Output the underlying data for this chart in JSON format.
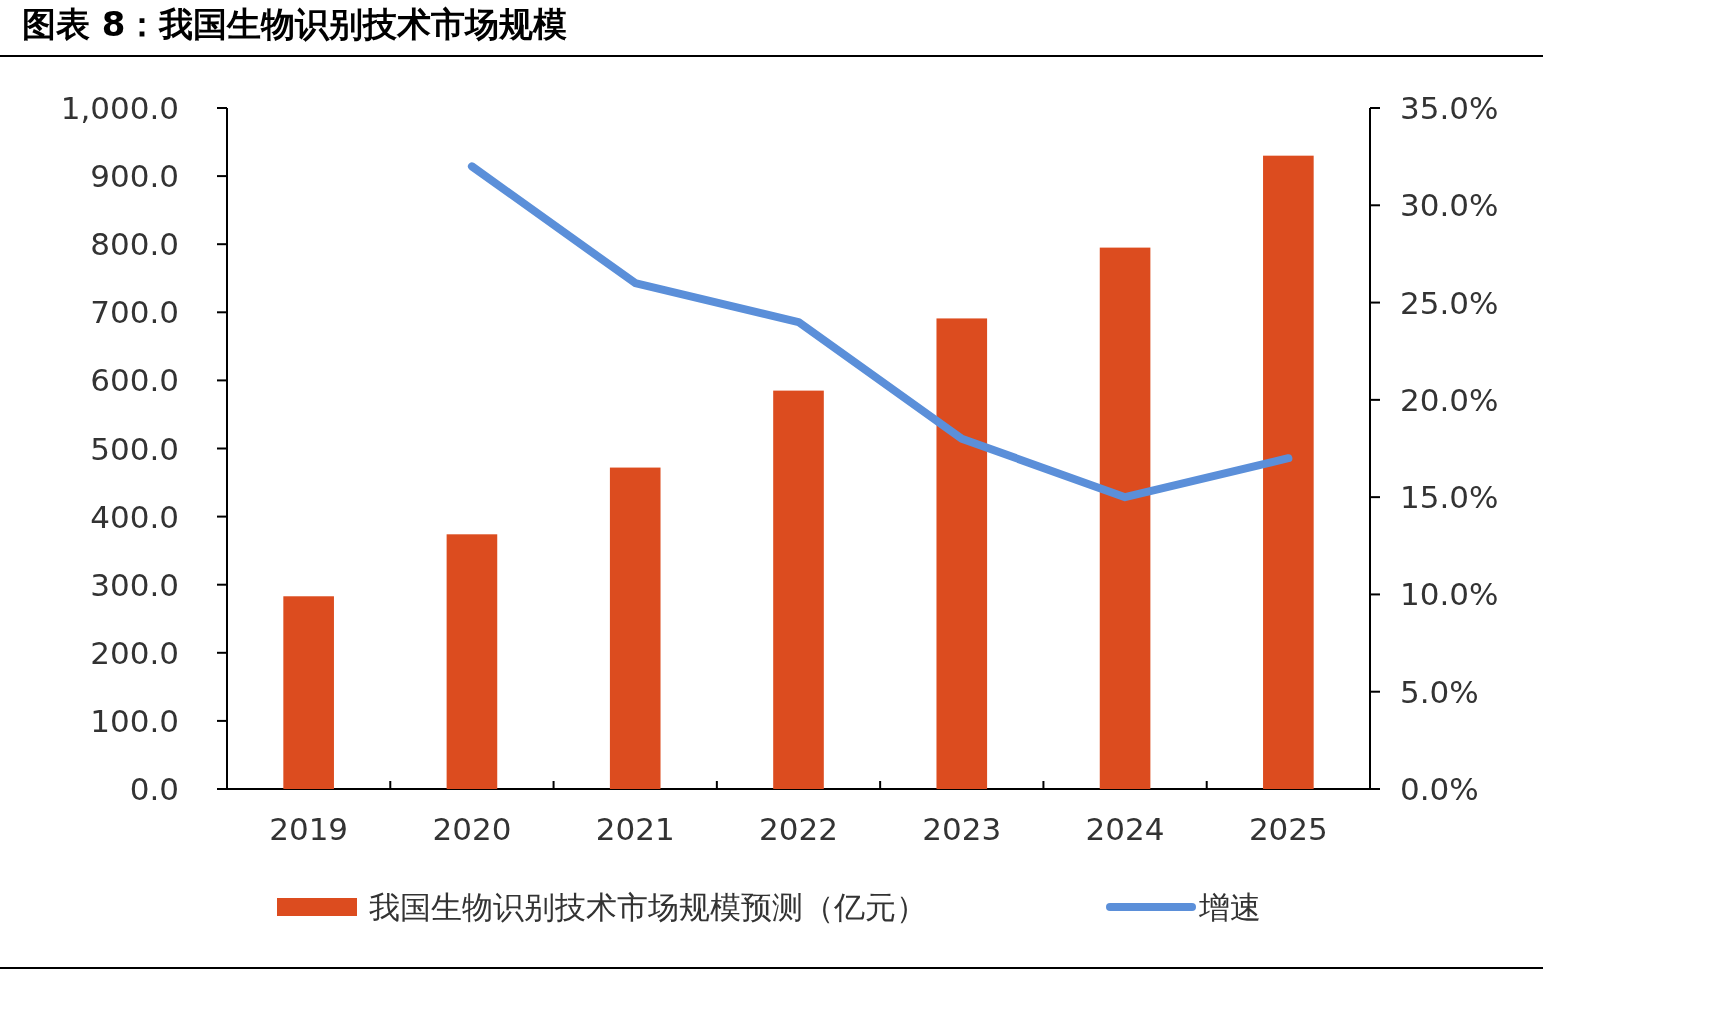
{
  "chart_data": {
    "type": "bar",
    "title": "图表 8：我国生物识别技术市场规模",
    "categories": [
      "2019",
      "2020",
      "2021",
      "2022",
      "2023",
      "2024",
      "2025"
    ],
    "series": [
      {
        "name": "我国生物识别技术市场规模预测（亿元）",
        "color": "#dc4c1f",
        "values": [
          283,
          374,
          472,
          585,
          691,
          795,
          930
        ]
      },
      {
        "name": "增速",
        "type": "line",
        "axis": "y2",
        "color": "#5b8fd9",
        "values": [
          null,
          32.0,
          26.0,
          24.0,
          18.0,
          15.0,
          17.0
        ]
      }
    ],
    "ylim": [
      0,
      1000
    ],
    "yticks": [
      {
        "value": 0,
        "label": "0.0"
      },
      {
        "value": 100,
        "label": "100.0"
      },
      {
        "value": 200,
        "label": "200.0"
      },
      {
        "value": 300,
        "label": "300.0"
      },
      {
        "value": 400,
        "label": "400.0"
      },
      {
        "value": 500,
        "label": "500.0"
      },
      {
        "value": 600,
        "label": "600.0"
      },
      {
        "value": 700,
        "label": "700.0"
      },
      {
        "value": 800,
        "label": "800.0"
      },
      {
        "value": 900,
        "label": "900.0"
      },
      {
        "value": 1000,
        "label": "1,000.0"
      }
    ],
    "y2lim": [
      0,
      35
    ],
    "y2ticks": [
      {
        "value": 0,
        "label": "0.0%"
      },
      {
        "value": 5,
        "label": "5.0%"
      },
      {
        "value": 10,
        "label": "10.0%"
      },
      {
        "value": 15,
        "label": "15.0%"
      },
      {
        "value": 20,
        "label": "20.0%"
      },
      {
        "value": 25,
        "label": "25.0%"
      },
      {
        "value": 30,
        "label": "30.0%"
      },
      {
        "value": 35,
        "label": "35.0%"
      }
    ],
    "legend": "bottom",
    "grid": false
  }
}
